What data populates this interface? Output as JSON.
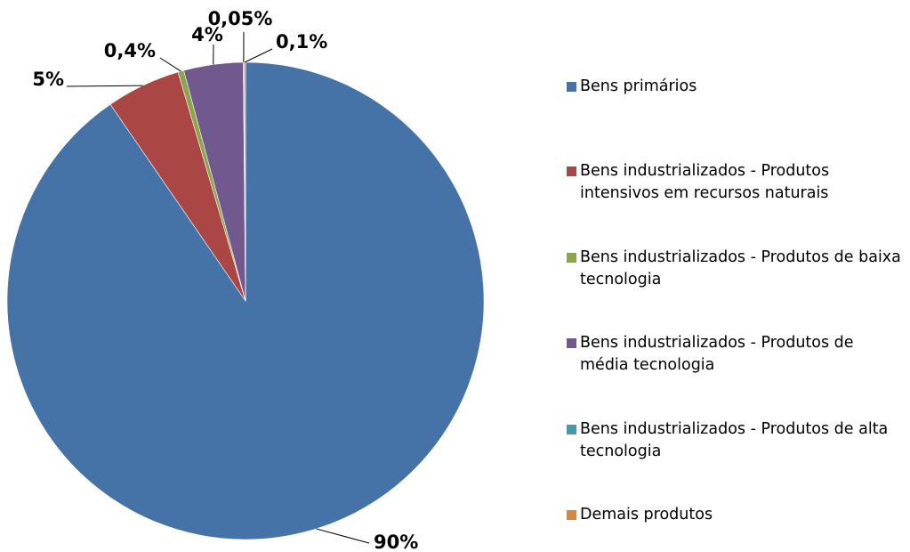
{
  "chart_data": {
    "type": "pie",
    "categories": [
      "Bens primários",
      "Bens industrializados - Produtos intensivos em recursos naturais",
      "Bens industrializados - Produtos de baixa tecnologia",
      "Bens industrializados - Produtos de média tecnologia",
      "Bens industrializados - Produtos de alta tecnologia",
      "Demais produtos"
    ],
    "values": [
      90,
      5,
      0.4,
      4,
      0.05,
      0.1
    ],
    "value_labels": [
      "90%",
      "5%",
      "0,4%",
      "4%",
      "0,05%",
      "0,1%"
    ],
    "colors": [
      "#4572a7",
      "#aa4643",
      "#89a54e",
      "#71588f",
      "#4198af",
      "#db843d"
    ],
    "legend": "right"
  }
}
